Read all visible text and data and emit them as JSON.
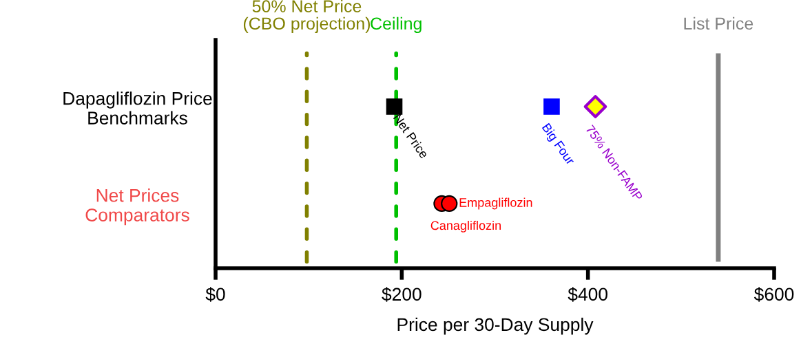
{
  "chart_data": {
    "type": "scatter",
    "orientation": "horizontal",
    "xlabel": "Price per 30-Day Supply",
    "categories": [
      "Dapagliflozin Price\nBenchmarks",
      "Net Prices\nComparators"
    ],
    "xlim": [
      0,
      600
    ],
    "xticks": [
      {
        "value": 0,
        "label": "$0"
      },
      {
        "value": 200,
        "label": "$200"
      },
      {
        "value": 400,
        "label": "$400"
      },
      {
        "value": 600,
        "label": "$600"
      }
    ],
    "grid": false,
    "legend": false,
    "series": [
      {
        "name": "Net Price",
        "color": "#000000",
        "marker": "square",
        "values": [
          192,
          null
        ]
      },
      {
        "name": "Big Four",
        "color": "#0000ff",
        "marker": "square",
        "values": [
          361,
          null
        ]
      },
      {
        "name": "75% Non-FAMP",
        "color": "#9900cc",
        "marker": "diamond",
        "values": [
          408,
          null
        ]
      },
      {
        "name": "Empagliflozin",
        "color": "#ff0000",
        "marker": "circle",
        "values": [
          null,
          251
        ]
      },
      {
        "name": "Canagliflozin",
        "color": "#ff0000",
        "marker": "circle",
        "values": [
          null,
          243
        ]
      }
    ],
    "ref_lines": [
      {
        "axis": "x",
        "value": 98,
        "label": "50% Net Price\n(CBO projection)",
        "color": "#808000",
        "line_style": "dashed"
      },
      {
        "axis": "x",
        "value": 194,
        "label": "Ceiling",
        "color": "#00c000",
        "line_style": "dashed"
      },
      {
        "axis": "x",
        "value": 540,
        "label": "List Price",
        "color": "#808080",
        "line_style": "solid"
      }
    ]
  }
}
